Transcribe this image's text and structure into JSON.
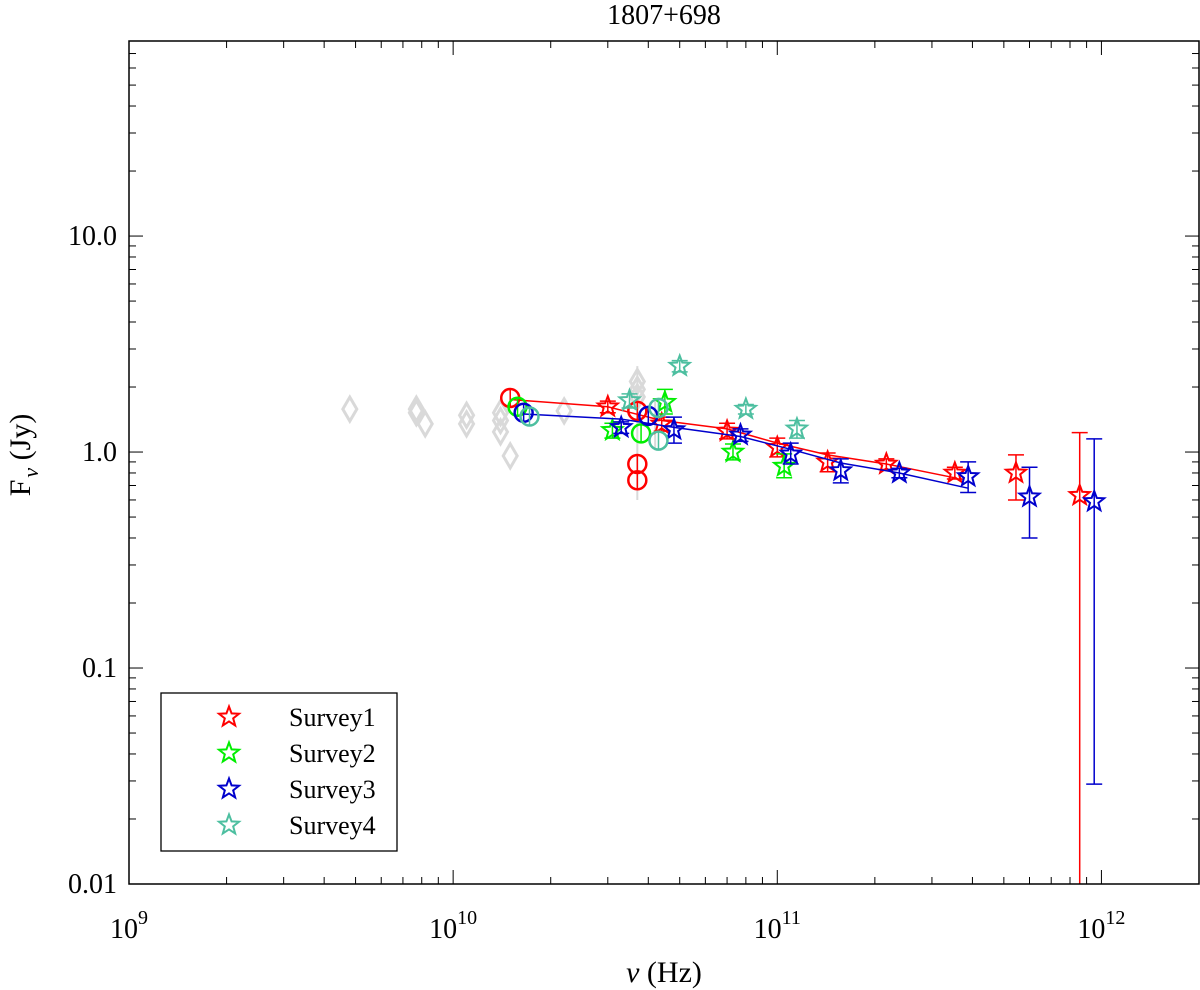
{
  "chart_data": {
    "type": "scatter",
    "title": "1807+698",
    "xlabel_sym": "ν",
    "xlabel_unit": "(Hz)",
    "ylabel_main": "F",
    "ylabel_sub": "ν",
    "ylabel_unit": "(Jy)",
    "x_scale": "log",
    "y_scale": "log",
    "xlim": [
      1000000000.0,
      2000000000000.0
    ],
    "ylim": [
      0.01,
      80
    ],
    "grid": false,
    "legend_position": "bottom-left",
    "x_tick_labels": [
      {
        "value": 1000000000.0,
        "base": "10",
        "exp": "9"
      },
      {
        "value": 10000000000.0,
        "base": "10",
        "exp": "10"
      },
      {
        "value": 100000000000.0,
        "base": "10",
        "exp": "11"
      },
      {
        "value": 1000000000000.0,
        "base": "10",
        "exp": "12"
      }
    ],
    "y_tick_labels": [
      {
        "value": 0.01,
        "label": "0.01"
      },
      {
        "value": 0.1,
        "label": "0.1"
      },
      {
        "value": 1,
        "label": "1.0"
      },
      {
        "value": 10,
        "label": "10.0"
      }
    ],
    "series": [
      {
        "name": "Survey1",
        "color": "#ff0000",
        "stars": [
          {
            "x": 30000000000.0,
            "y": 1.62,
            "err": [
              1.52,
              1.72
            ]
          },
          {
            "x": 44000000000.0,
            "y": 1.35,
            "err": [
              1.25,
              1.45
            ]
          },
          {
            "x": 70000000000.0,
            "y": 1.25,
            "err": [
              1.15,
              1.36
            ]
          },
          {
            "x": 100000000000.0,
            "y": 1.05,
            "err": [
              0.95,
              1.16
            ]
          },
          {
            "x": 143000000000.0,
            "y": 0.9,
            "err": [
              0.81,
              0.99
            ]
          },
          {
            "x": 217000000000.0,
            "y": 0.88,
            "err": [
              0.83,
              0.93
            ]
          },
          {
            "x": 353000000000.0,
            "y": 0.8,
            "err": [
              0.75,
              0.85
            ]
          },
          {
            "x": 545000000000.0,
            "y": 0.8,
            "err": [
              0.6,
              0.97
            ]
          },
          {
            "x": 857000000000.0,
            "y": 0.63,
            "err": [
              0.01,
              1.23
            ]
          }
        ],
        "circles": [
          {
            "x": 15000000000.0,
            "y": 1.78
          },
          {
            "x": 37000000000.0,
            "y": 1.55
          },
          {
            "x": 37000000000.0,
            "y": 0.88
          },
          {
            "x": 37000000000.0,
            "y": 0.74
          }
        ],
        "fit": [
          [
            15000000000.0,
            1.75
          ],
          [
            30000000000.0,
            1.62
          ],
          [
            44000000000.0,
            1.4
          ],
          [
            70000000000.0,
            1.28
          ],
          [
            100000000000.0,
            1.1
          ],
          [
            143000000000.0,
            0.97
          ],
          [
            217000000000.0,
            0.88
          ],
          [
            353000000000.0,
            0.76
          ]
        ]
      },
      {
        "name": "Survey2",
        "color": "#00ee00",
        "stars": [
          {
            "x": 31000000000.0,
            "y": 1.26,
            "err": [
              1.16,
              1.36
            ]
          },
          {
            "x": 45000000000.0,
            "y": 1.7,
            "err": [
              1.5,
              1.95
            ]
          },
          {
            "x": 73000000000.0,
            "y": 1.0,
            "err": [
              0.92,
              1.09
            ]
          },
          {
            "x": 105000000000.0,
            "y": 0.86,
            "err": [
              0.76,
              0.98
            ]
          }
        ],
        "circles": [
          {
            "x": 15800000000.0,
            "y": 1.62
          },
          {
            "x": 38000000000.0,
            "y": 1.22
          }
        ],
        "fit": []
      },
      {
        "name": "Survey3",
        "color": "#0000cc",
        "stars": [
          {
            "x": 33000000000.0,
            "y": 1.3,
            "err": [
              1.22,
              1.38
            ]
          },
          {
            "x": 48000000000.0,
            "y": 1.27,
            "err": [
              1.1,
              1.45
            ]
          },
          {
            "x": 77000000000.0,
            "y": 1.2,
            "err": [
              1.12,
              1.28
            ]
          },
          {
            "x": 110000000000.0,
            "y": 0.98,
            "err": [
              0.88,
              1.1
            ]
          },
          {
            "x": 157000000000.0,
            "y": 0.82,
            "err": [
              0.72,
              0.93
            ]
          },
          {
            "x": 238000000000.0,
            "y": 0.8,
            "err": [
              0.76,
              0.84
            ]
          },
          {
            "x": 388000000000.0,
            "y": 0.77,
            "err": [
              0.65,
              0.9
            ]
          },
          {
            "x": 600000000000.0,
            "y": 0.62,
            "err": [
              0.4,
              0.85
            ]
          },
          {
            "x": 950000000000.0,
            "y": 0.59,
            "err": [
              0.029,
              1.15
            ]
          }
        ],
        "circles": [
          {
            "x": 16500000000.0,
            "y": 1.52
          },
          {
            "x": 40000000000.0,
            "y": 1.47
          }
        ],
        "fit": [
          [
            16500000000.0,
            1.5
          ],
          [
            33000000000.0,
            1.42
          ],
          [
            48000000000.0,
            1.3
          ],
          [
            77000000000.0,
            1.18
          ],
          [
            110000000000.0,
            1.03
          ],
          [
            157000000000.0,
            0.89
          ],
          [
            238000000000.0,
            0.8
          ],
          [
            388000000000.0,
            0.68
          ]
        ]
      },
      {
        "name": "Survey4",
        "color": "#4dbfa0",
        "stars": [
          {
            "x": 35000000000.0,
            "y": 1.73,
            "err": [
              1.6,
              1.86
            ]
          },
          {
            "x": 50000000000.0,
            "y": 2.5,
            "err": [
              2.35,
              2.65
            ]
          },
          {
            "x": 80000000000.0,
            "y": 1.58,
            "err": [
              1.5,
              1.66
            ]
          },
          {
            "x": 115000000000.0,
            "y": 1.28,
            "err": [
              1.16,
              1.4
            ]
          }
        ],
        "circles": [
          {
            "x": 17200000000.0,
            "y": 1.46
          },
          {
            "x": 43000000000.0,
            "y": 1.6
          },
          {
            "x": 43000000000.0,
            "y": 1.13
          }
        ],
        "fit": []
      }
    ],
    "archival": {
      "color": "#d9d9d9",
      "points": [
        {
          "x": 4800000000.0,
          "y": 1.58
        },
        {
          "x": 7700000000.0,
          "y": 1.58
        },
        {
          "x": 7700000000.0,
          "y": 1.52
        },
        {
          "x": 8200000000.0,
          "y": 1.35
        },
        {
          "x": 11000000000.0,
          "y": 1.48
        },
        {
          "x": 11000000000.0,
          "y": 1.35
        },
        {
          "x": 14000000000.0,
          "y": 1.52
        },
        {
          "x": 14000000000.0,
          "y": 1.4
        },
        {
          "x": 14000000000.0,
          "y": 1.24
        },
        {
          "x": 15000000000.0,
          "y": 0.96
        },
        {
          "x": 22000000000.0,
          "y": 1.55
        },
        {
          "x": 37000000000.0,
          "y": 2.12
        },
        {
          "x": 37000000000.0,
          "y": 1.95
        },
        {
          "x": 37000000000.0,
          "y": 1.8
        }
      ],
      "err_bars": [
        {
          "x": 37000000000.0,
          "err": [
            0.6,
            2.5
          ]
        },
        {
          "x": 42000000000.0,
          "err": [
            1.02,
            1.75
          ]
        }
      ]
    }
  }
}
